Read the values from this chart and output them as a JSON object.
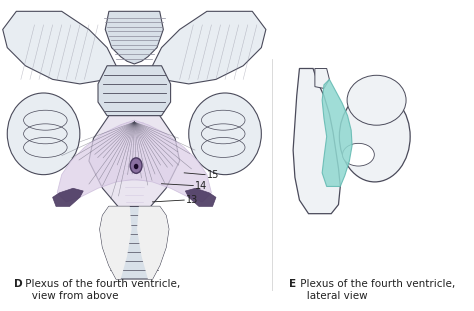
{
  "background_color": "#ffffff",
  "title_D_bold": "D",
  "title_D_rest": " Plexus of the fourth ventricle,\n   view from above",
  "title_E_bold": "E",
  "title_E_rest": " Plexus of the fourth ventricle,\n   lateral view",
  "label_14": "14",
  "label_15": "15",
  "label_13": "13",
  "label_color": "#222222",
  "label_fontsize": 7,
  "caption_fontsize": 7.5,
  "caption_color": "#222222",
  "figure_bg": "#ffffff",
  "purple_dark": "#4a3860",
  "purple_mid": "#8a6fa0",
  "light_purple": "#c8b8d8",
  "pink_plexus": "#d8c8d8",
  "teal_color": "#90d8d0",
  "teal_light": "#b8e8e4",
  "outline_color": "#4a4a5a",
  "light_gray": "#c8d0d8",
  "mid_gray": "#b0b8c8",
  "anatomy_white": "#e8edf2",
  "anatomy_light": "#d8e0e8",
  "dark_line": "#3a3a4a",
  "hatch_color": "#8a8a9a"
}
